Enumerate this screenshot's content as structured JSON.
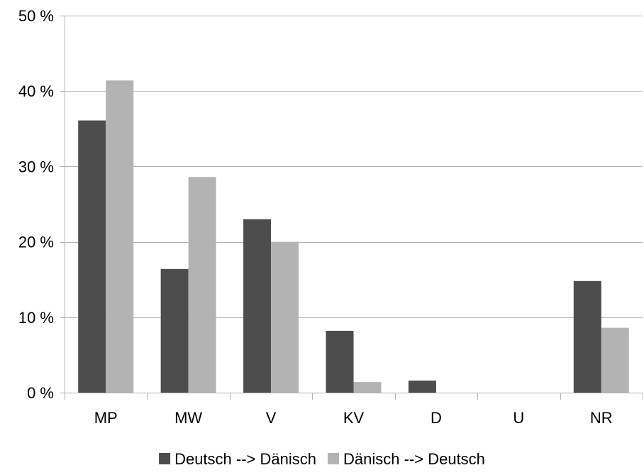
{
  "chart_data": {
    "type": "bar",
    "title": "",
    "xlabel": "",
    "ylabel": "",
    "categories": [
      "MP",
      "MW",
      "V",
      "KV",
      "D",
      "U",
      "NR"
    ],
    "series": [
      {
        "name": "Deutsch --> Dänisch",
        "color": "#4d4d4d",
        "values": [
          36.1,
          16.4,
          23.0,
          8.2,
          1.6,
          0.0,
          14.8
        ]
      },
      {
        "name": "Dänisch --> Deutsch",
        "color": "#b3b3b3",
        "values": [
          41.4,
          28.6,
          20.0,
          1.4,
          0.0,
          0.0,
          8.6
        ]
      }
    ],
    "ylim": [
      0,
      50
    ],
    "yticks": [
      0,
      10,
      20,
      30,
      40,
      50
    ],
    "ytick_labels": [
      "0 %",
      "10 %",
      "20 %",
      "30 %",
      "40 %",
      "50 %"
    ],
    "grid": true,
    "legend_position": "bottom",
    "colors": {
      "grid": "#b3b3b3",
      "axis": "#b3b3b3"
    }
  }
}
